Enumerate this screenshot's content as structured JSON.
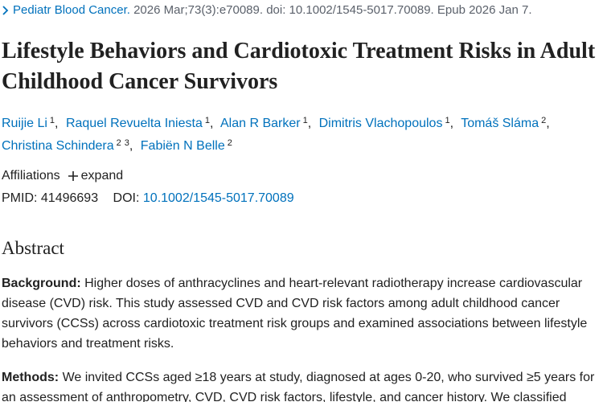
{
  "citation": {
    "journal": "Pediatr Blood Cancer.",
    "details": "2026 Mar;73(3):e70089. doi: 10.1002/1545-5017.70089. Epub 2026 Jan 7."
  },
  "title": "Lifestyle Behaviors and Cardiotoxic Treatment Risks in Adult Childhood Cancer Survivors",
  "authors": [
    {
      "name": "Ruijie Li",
      "affiliations": [
        1
      ]
    },
    {
      "name": "Raquel Revuelta Iniesta",
      "affiliations": [
        1
      ]
    },
    {
      "name": "Alan R Barker",
      "affiliations": [
        1
      ]
    },
    {
      "name": "Dimitris Vlachopoulos",
      "affiliations": [
        1
      ]
    },
    {
      "name": "Tomáš Sláma",
      "affiliations": [
        2
      ]
    },
    {
      "name": "Christina Schindera",
      "affiliations": [
        2,
        3
      ]
    },
    {
      "name": "Fabiën N Belle",
      "affiliations": [
        2
      ]
    }
  ],
  "affiliations": {
    "label": "Affiliations",
    "toggle": "expand"
  },
  "identifiers": {
    "pmid_label": "PMID:",
    "pmid": "41496693",
    "doi_label": "DOI:",
    "doi": "10.1002/1545-5017.70089"
  },
  "abstract": {
    "heading": "Abstract",
    "sections": [
      {
        "label": "Background:",
        "text": "Higher doses of anthracyclines and heart-relevant radiotherapy increase cardiovascular disease (CVD) risk. This study assessed CVD and CVD risk factors among adult childhood cancer survivors (CCSs) across cardiotoxic treatment risk groups and examined associations between lifestyle behaviors and treatment risks."
      },
      {
        "label": "Methods:",
        "text": "We invited CCSs aged ≥18 years at study, diagnosed at ages 0-20, who survived ≥5 years for an assessment of anthropometry, CVD, CVD risk factors, lifestyle, and cancer history. We classified"
      }
    ]
  }
}
